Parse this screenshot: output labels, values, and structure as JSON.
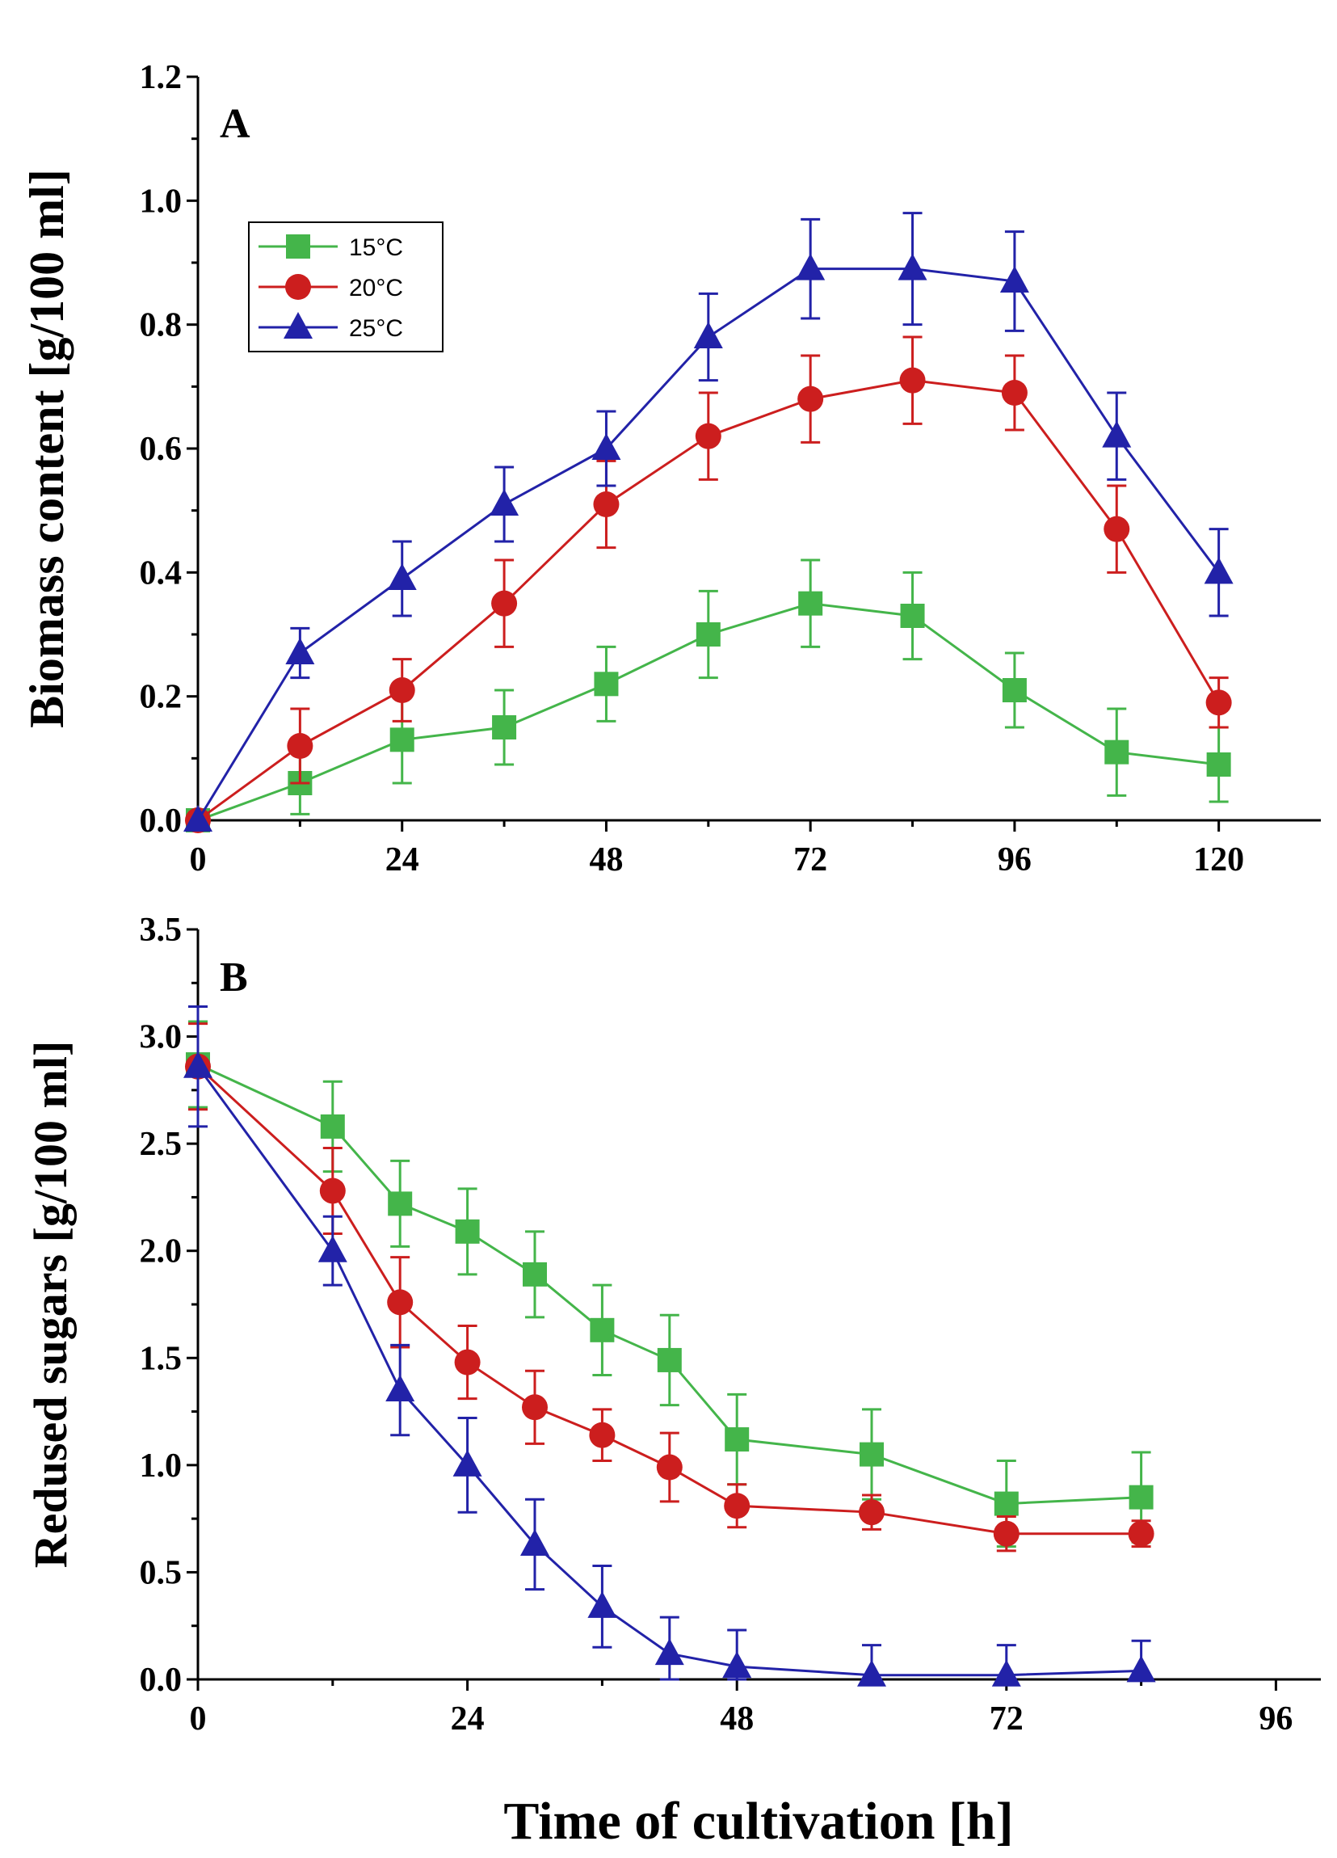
{
  "chart_data": [
    {
      "panel_label": "A",
      "type": "line",
      "ylabel": "Biomass content [g/100 ml]",
      "xlim": [
        0,
        132
      ],
      "ylim": [
        0,
        1.2
      ],
      "xticks": [
        0,
        24,
        48,
        72,
        96,
        120
      ],
      "yticks": [
        "0.0",
        "0.2",
        "0.4",
        "0.6",
        "0.8",
        "1.0",
        "1.2"
      ],
      "error_bars": true,
      "legend": {
        "position": "top-left"
      },
      "series": [
        {
          "name": "15°C",
          "color": "#44b54a",
          "marker": "square",
          "x": [
            0,
            12,
            24,
            36,
            48,
            60,
            72,
            84,
            96,
            108,
            120
          ],
          "y": [
            0.0,
            0.06,
            0.13,
            0.15,
            0.22,
            0.3,
            0.35,
            0.33,
            0.21,
            0.11,
            0.09
          ],
          "err": [
            0.0,
            0.05,
            0.07,
            0.06,
            0.06,
            0.07,
            0.07,
            0.07,
            0.06,
            0.07,
            0.06
          ]
        },
        {
          "name": "20°C",
          "color": "#cc1e1e",
          "marker": "circle",
          "x": [
            0,
            12,
            24,
            36,
            48,
            60,
            72,
            84,
            96,
            108,
            120
          ],
          "y": [
            0.0,
            0.12,
            0.21,
            0.35,
            0.51,
            0.62,
            0.68,
            0.71,
            0.69,
            0.47,
            0.19
          ],
          "err": [
            0.0,
            0.06,
            0.05,
            0.07,
            0.07,
            0.07,
            0.07,
            0.07,
            0.06,
            0.07,
            0.04
          ]
        },
        {
          "name": "25°C",
          "color": "#2222a8",
          "marker": "triangle",
          "x": [
            0,
            12,
            24,
            36,
            48,
            60,
            72,
            84,
            96,
            108,
            120
          ],
          "y": [
            0.0,
            0.27,
            0.39,
            0.51,
            0.6,
            0.78,
            0.89,
            0.89,
            0.87,
            0.62,
            0.4
          ],
          "err": [
            0.0,
            0.04,
            0.06,
            0.06,
            0.06,
            0.07,
            0.08,
            0.09,
            0.08,
            0.07,
            0.07
          ]
        }
      ]
    },
    {
      "panel_label": "B",
      "type": "line",
      "xlabel": "Time of cultivation [h]",
      "ylabel": "Redused sugars [g/100 ml]",
      "xlim": [
        0,
        100
      ],
      "ylim": [
        0,
        3.5
      ],
      "xticks": [
        0,
        24,
        48,
        72,
        96
      ],
      "yticks": [
        "0.0",
        "0.5",
        "1.0",
        "1.5",
        "2.0",
        "2.5",
        "3.0",
        "3.5"
      ],
      "error_bars": true,
      "series": [
        {
          "name": "15°C",
          "color": "#44b54a",
          "marker": "square",
          "x": [
            0,
            12,
            18,
            24,
            30,
            36,
            42,
            48,
            60,
            72,
            84
          ],
          "y": [
            2.87,
            2.58,
            2.22,
            2.09,
            1.89,
            1.63,
            1.49,
            1.12,
            1.05,
            0.82,
            0.85
          ],
          "err": [
            0.2,
            0.21,
            0.2,
            0.2,
            0.2,
            0.21,
            0.21,
            0.21,
            0.21,
            0.2,
            0.21
          ]
        },
        {
          "name": "20°C",
          "color": "#cc1e1e",
          "marker": "circle",
          "x": [
            0,
            12,
            18,
            24,
            30,
            36,
            42,
            48,
            60,
            72,
            84
          ],
          "y": [
            2.86,
            2.28,
            1.76,
            1.48,
            1.27,
            1.14,
            0.99,
            0.81,
            0.78,
            0.68,
            0.68
          ],
          "err": [
            0.2,
            0.2,
            0.21,
            0.17,
            0.17,
            0.12,
            0.16,
            0.1,
            0.08,
            0.08,
            0.06
          ]
        },
        {
          "name": "25°C",
          "color": "#2222a8",
          "marker": "triangle",
          "x": [
            0,
            12,
            18,
            24,
            30,
            36,
            42,
            48,
            60,
            72,
            84
          ],
          "y": [
            2.86,
            2.0,
            1.35,
            1.0,
            0.63,
            0.34,
            0.12,
            0.06,
            0.02,
            0.02,
            0.04
          ],
          "err": [
            0.28,
            0.16,
            0.21,
            0.22,
            0.21,
            0.19,
            0.17,
            0.17,
            0.14,
            0.14,
            0.14
          ]
        }
      ]
    }
  ]
}
